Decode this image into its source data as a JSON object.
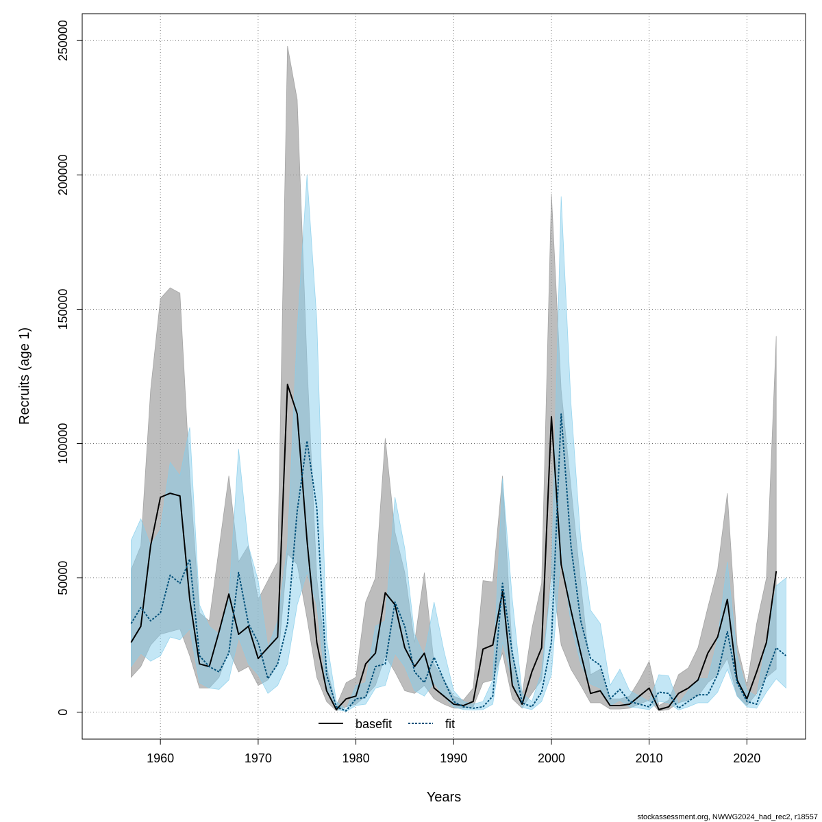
{
  "chart_data": {
    "type": "line",
    "xlabel": "Years",
    "ylabel": "Recruits (age 1)",
    "xlim": [
      1952,
      2026
    ],
    "ylim": [
      -10000,
      260000
    ],
    "x_ticks": [
      1960,
      1970,
      1980,
      1990,
      2000,
      2010,
      2020
    ],
    "x_tick_labels": [
      "1960",
      "1970",
      "1980",
      "1990",
      "2000",
      "2010",
      "2020"
    ],
    "y_ticks": [
      0,
      50000,
      100000,
      150000,
      200000,
      250000
    ],
    "y_tick_labels": [
      "0",
      "50000",
      "100000",
      "150000",
      "200000",
      "250000"
    ],
    "grid": true,
    "legend_position": "bottom-center",
    "colors": {
      "basefit_line": "#000000",
      "basefit_band": "#999999",
      "fit_line": "#00507A",
      "fit_band": "#87CEEB"
    },
    "series": [
      {
        "name": "basefit",
        "line_style": "solid",
        "x": [
          1957,
          1958,
          1959,
          1960,
          1961,
          1962,
          1963,
          1964,
          1965,
          1966,
          1967,
          1968,
          1969,
          1970,
          1971,
          1972,
          1973,
          1974,
          1975,
          1976,
          1977,
          1978,
          1979,
          1980,
          1981,
          1982,
          1983,
          1984,
          1985,
          1986,
          1987,
          1988,
          1989,
          1990,
          1991,
          1992,
          1993,
          1994,
          1995,
          1996,
          1997,
          1998,
          1999,
          2000,
          2001,
          2002,
          2003,
          2004,
          2005,
          2006,
          2007,
          2008,
          2009,
          2010,
          2011,
          2012,
          2013,
          2014,
          2015,
          2016,
          2017,
          2018,
          2019,
          2020,
          2021,
          2022,
          2023
        ],
        "values": [
          26000,
          32000,
          62000,
          80000,
          81500,
          80500,
          42000,
          18000,
          17000,
          30000,
          44000,
          29000,
          32000,
          20000,
          24000,
          28000,
          122000,
          111000,
          64000,
          26000,
          8000,
          1000,
          5000,
          6000,
          18000,
          22000,
          44500,
          40000,
          24000,
          17000,
          22000,
          9000,
          6000,
          3000,
          2500,
          4000,
          23500,
          25000,
          45000,
          10000,
          3000,
          15000,
          24000,
          110000,
          55000,
          38000,
          22000,
          7000,
          8000,
          2500,
          2500,
          3000,
          6000,
          9000,
          1000,
          2000,
          7000,
          9000,
          12000,
          22000,
          28000,
          42000,
          12000,
          5000,
          15000,
          26000,
          52500
        ],
        "lower": [
          13000,
          17000,
          25000,
          29000,
          30000,
          31000,
          21000,
          9000,
          9000,
          13000,
          23000,
          15000,
          17000,
          10000,
          12000,
          18000,
          59000,
          55000,
          35000,
          13000,
          4000,
          500,
          2000,
          3000,
          6000,
          10000,
          21000,
          15000,
          8000,
          7000,
          10000,
          5000,
          3000,
          1500,
          1500,
          2000,
          11000,
          12000,
          22000,
          5000,
          1500,
          7000,
          12000,
          53000,
          25000,
          16000,
          10000,
          3500,
          3500,
          1200,
          1200,
          1500,
          3000,
          4500,
          500,
          1000,
          3500,
          4500,
          6000,
          11000,
          14000,
          20000,
          6000,
          2500,
          7000,
          13000,
          16000
        ],
        "upper": [
          53000,
          62000,
          120000,
          154000,
          158000,
          156000,
          88000,
          37000,
          34000,
          61000,
          88000,
          56000,
          62000,
          42000,
          49000,
          56000,
          248000,
          228000,
          130000,
          50000,
          17000,
          2500,
          11000,
          13000,
          41000,
          50000,
          102000,
          67000,
          52000,
          26000,
          52000,
          18000,
          12000,
          6000,
          4500,
          9000,
          49000,
          48500,
          88000,
          22000,
          6500,
          31000,
          48000,
          193000,
          120000,
          84000,
          48000,
          14000,
          16000,
          5000,
          5000,
          6000,
          12000,
          19000,
          2500,
          4500,
          14000,
          16500,
          24000,
          39000,
          53000,
          81500,
          25000,
          10000,
          33000,
          50000,
          140000
        ]
      },
      {
        "name": "fit",
        "line_style": "dotted",
        "x": [
          1957,
          1958,
          1959,
          1960,
          1961,
          1962,
          1963,
          1964,
          1965,
          1966,
          1967,
          1968,
          1969,
          1970,
          1971,
          1972,
          1973,
          1974,
          1975,
          1976,
          1977,
          1978,
          1979,
          1980,
          1981,
          1982,
          1983,
          1984,
          1985,
          1986,
          1987,
          1988,
          1989,
          1990,
          1991,
          1992,
          1993,
          1994,
          1995,
          1996,
          1997,
          1998,
          1999,
          2000,
          2001,
          2002,
          2003,
          2004,
          2005,
          2006,
          2007,
          2008,
          2009,
          2010,
          2011,
          2012,
          2013,
          2014,
          2015,
          2016,
          2017,
          2018,
          2019,
          2020,
          2021,
          2022,
          2023,
          2024
        ],
        "values": [
          33000,
          39000,
          34000,
          37000,
          51000,
          48000,
          57000,
          21000,
          17000,
          15000,
          22000,
          52000,
          33000,
          26000,
          12500,
          18000,
          33000,
          75000,
          101000,
          76000,
          14000,
          2000,
          500,
          5000,
          5500,
          17000,
          18000,
          41000,
          32000,
          15000,
          11000,
          20500,
          12000,
          4000,
          2000,
          1500,
          2000,
          6000,
          48000,
          22000,
          3500,
          2000,
          7500,
          26000,
          111000,
          62000,
          34000,
          20000,
          17500,
          5000,
          8500,
          4000,
          3000,
          2000,
          7500,
          7000,
          1500,
          4000,
          6500,
          6500,
          14000,
          30000,
          11000,
          4000,
          3000,
          14000,
          24000,
          21000
        ],
        "lower": [
          17000,
          22000,
          19000,
          21000,
          28000,
          27000,
          31000,
          11000,
          9000,
          8500,
          12000,
          28000,
          18000,
          14000,
          7000,
          10000,
          18000,
          40000,
          52000,
          40000,
          7500,
          1000,
          300,
          2500,
          3000,
          9000,
          10000,
          22000,
          17000,
          8000,
          6000,
          11000,
          6000,
          2000,
          1000,
          800,
          1000,
          3000,
          26000,
          12000,
          1800,
          1000,
          4000,
          14000,
          60000,
          33000,
          18000,
          10500,
          9000,
          2500,
          4500,
          2000,
          1500,
          1000,
          4000,
          3500,
          800,
          2000,
          3500,
          3500,
          7500,
          16000,
          6000,
          2000,
          1500,
          7500,
          12500,
          9000
        ],
        "upper": [
          64000,
          72000,
          62000,
          68000,
          93000,
          88000,
          106000,
          40000,
          32000,
          29000,
          42000,
          98000,
          62000,
          49000,
          24000,
          34000,
          62000,
          142000,
          200000,
          146000,
          27000,
          4000,
          1000,
          10000,
          11000,
          32000,
          34000,
          80000,
          61000,
          29000,
          21000,
          41000,
          23000,
          8000,
          4000,
          3000,
          4000,
          12000,
          87000,
          42000,
          7000,
          4000,
          15000,
          49000,
          192000,
          115000,
          64000,
          38000,
          33000,
          10000,
          16000,
          8000,
          6000,
          4000,
          14000,
          13500,
          3000,
          8000,
          12500,
          12500,
          27000,
          56000,
          21000,
          8000,
          6000,
          27000,
          47000,
          50000
        ]
      }
    ]
  },
  "footer": {
    "source": "stockassessment.org, NWWG2024_had_rec2, r18557"
  }
}
